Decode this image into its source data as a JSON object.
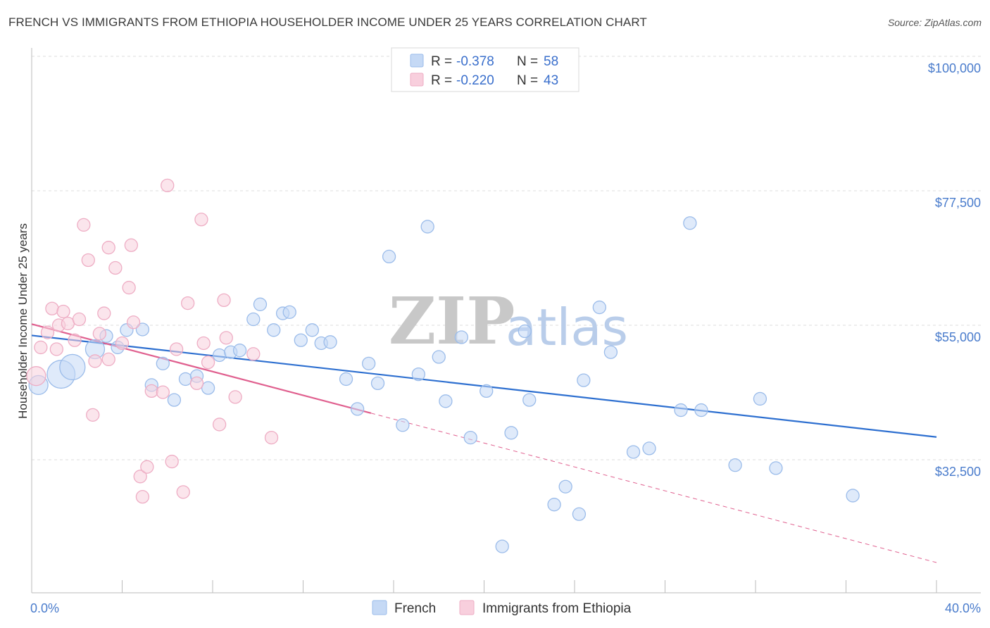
{
  "title": "FRENCH VS IMMIGRANTS FROM ETHIOPIA HOUSEHOLDER INCOME UNDER 25 YEARS CORRELATION CHART",
  "source": "Source: ZipAtlas.com",
  "watermark": {
    "zip": "ZIP",
    "atlas": "atlas"
  },
  "chart_data": {
    "type": "scatter",
    "xlabel": "",
    "ylabel": "Householder Income Under 25 years",
    "xlim": [
      0,
      40
    ],
    "ylim": [
      15000,
      103000
    ],
    "x_tick_labels": [
      {
        "value": 0,
        "label": "0.0%"
      },
      {
        "value": 40,
        "label": "40.0%"
      }
    ],
    "y_tick_labels": [
      {
        "value": 32500,
        "label": "$32,500"
      },
      {
        "value": 55000,
        "label": "$55,000"
      },
      {
        "value": 77500,
        "label": "$77,500"
      },
      {
        "value": 100000,
        "label": "$100,000"
      }
    ],
    "legend": {
      "position": "top-center",
      "rows": [
        {
          "r_label": "R =",
          "r_value": "-0.378",
          "n_label": "N =",
          "n_value": "58"
        },
        {
          "r_label": "R =",
          "r_value": "-0.220",
          "n_label": "N =",
          "n_value": 43
        }
      ]
    },
    "series": [
      {
        "name": "French",
        "color": "#9bbcea",
        "fill": "#c5d9f5",
        "line_color": "#2d6fd0",
        "trend": {
          "x0": 0,
          "y0": 55300,
          "x1": 40,
          "y1": 38300,
          "dashed_from": null
        },
        "points": [
          [
            0.3,
            47000,
            1.5
          ],
          [
            1.3,
            48800,
            2.2
          ],
          [
            1.8,
            50000,
            2.0
          ],
          [
            2.8,
            53000,
            1.5
          ],
          [
            3.3,
            55200,
            1.0
          ],
          [
            3.8,
            53300,
            1.0
          ],
          [
            4.2,
            56200,
            1.0
          ],
          [
            4.9,
            56300,
            1.0
          ],
          [
            5.3,
            47000,
            1.0
          ],
          [
            5.8,
            50600,
            1.0
          ],
          [
            6.3,
            44500,
            1.0
          ],
          [
            6.8,
            48000,
            1.0
          ],
          [
            7.3,
            48500,
            1.0
          ],
          [
            7.8,
            46500,
            1.0
          ],
          [
            8.3,
            52000,
            1.0
          ],
          [
            8.8,
            52500,
            1.0
          ],
          [
            9.2,
            52800,
            1.0
          ],
          [
            9.8,
            58000,
            1.0
          ],
          [
            10.1,
            60500,
            1.0
          ],
          [
            10.7,
            56200,
            1.0
          ],
          [
            11.1,
            59000,
            1.0
          ],
          [
            11.4,
            59200,
            1.0
          ],
          [
            11.9,
            54500,
            1.0
          ],
          [
            12.4,
            56200,
            1.0
          ],
          [
            12.8,
            54000,
            1.0
          ],
          [
            13.2,
            54200,
            1.0
          ],
          [
            13.9,
            48000,
            1.0
          ],
          [
            14.4,
            43000,
            1.0
          ],
          [
            14.9,
            50600,
            1.0
          ],
          [
            15.3,
            47300,
            1.0
          ],
          [
            15.8,
            68500,
            1.0
          ],
          [
            16.4,
            40300,
            1.0
          ],
          [
            17.1,
            48800,
            1.0
          ],
          [
            17.5,
            73500,
            1.0
          ],
          [
            18.0,
            51700,
            1.0
          ],
          [
            18.3,
            44300,
            1.0
          ],
          [
            19.0,
            55000,
            1.0
          ],
          [
            19.4,
            38200,
            1.0
          ],
          [
            20.1,
            46000,
            1.0
          ],
          [
            20.8,
            20000,
            1.0
          ],
          [
            21.2,
            39000,
            1.0
          ],
          [
            21.8,
            56000,
            1.0
          ],
          [
            22.0,
            44500,
            1.0
          ],
          [
            23.1,
            27000,
            1.0
          ],
          [
            24.2,
            25400,
            1.0
          ],
          [
            24.4,
            47800,
            1.0
          ],
          [
            25.1,
            60000,
            1.0
          ],
          [
            25.6,
            52500,
            1.0
          ],
          [
            26.6,
            35800,
            1.0
          ],
          [
            27.3,
            36400,
            1.0
          ],
          [
            28.7,
            42800,
            1.0
          ],
          [
            29.1,
            74100,
            1.0
          ],
          [
            29.6,
            42800,
            1.0
          ],
          [
            31.1,
            33600,
            1.0
          ],
          [
            32.2,
            44700,
            1.0
          ],
          [
            32.9,
            33100,
            1.0
          ],
          [
            36.3,
            28500,
            1.0
          ],
          [
            23.6,
            30000,
            1.0
          ]
        ]
      },
      {
        "name": "Immigrants from Ethiopia",
        "color": "#eeadc4",
        "fill": "#f8cfdd",
        "line_color": "#e0608f",
        "trend": {
          "x0": 0,
          "y0": 57200,
          "x1": 15,
          "y1": 42300,
          "dashed_to_x": 40,
          "dashed_to_y": 17300
        },
        "points": [
          [
            0.2,
            48500,
            1.5
          ],
          [
            0.4,
            53300,
            1.0
          ],
          [
            0.7,
            55800,
            1.0
          ],
          [
            0.9,
            59800,
            1.0
          ],
          [
            1.1,
            53000,
            1.0
          ],
          [
            1.2,
            57000,
            1.0
          ],
          [
            1.4,
            59300,
            1.0
          ],
          [
            1.6,
            57300,
            1.0
          ],
          [
            1.9,
            54500,
            1.0
          ],
          [
            2.1,
            58000,
            1.0
          ],
          [
            2.3,
            73800,
            1.0
          ],
          [
            2.5,
            67900,
            1.0
          ],
          [
            2.8,
            51000,
            1.0
          ],
          [
            3.0,
            55600,
            1.0
          ],
          [
            3.2,
            59000,
            1.0
          ],
          [
            3.4,
            70000,
            1.0
          ],
          [
            3.7,
            66600,
            1.0
          ],
          [
            4.0,
            54000,
            1.0
          ],
          [
            4.3,
            63300,
            1.0
          ],
          [
            4.5,
            57500,
            1.0
          ],
          [
            4.4,
            70400,
            1.0
          ],
          [
            4.8,
            31700,
            1.0
          ],
          [
            4.9,
            28300,
            1.0
          ],
          [
            5.1,
            33300,
            1.0
          ],
          [
            5.3,
            46000,
            1.0
          ],
          [
            5.8,
            45800,
            1.0
          ],
          [
            6.0,
            80400,
            1.0
          ],
          [
            6.2,
            34200,
            1.0
          ],
          [
            6.4,
            53000,
            1.0
          ],
          [
            6.7,
            29100,
            1.0
          ],
          [
            6.9,
            60700,
            1.0
          ],
          [
            7.3,
            47300,
            1.0
          ],
          [
            7.5,
            74700,
            1.0
          ],
          [
            7.8,
            50800,
            1.0
          ],
          [
            8.3,
            40400,
            1.0
          ],
          [
            8.5,
            61200,
            1.0
          ],
          [
            8.6,
            54900,
            1.0
          ],
          [
            9.0,
            45000,
            1.0
          ],
          [
            9.8,
            52200,
            1.0
          ],
          [
            10.6,
            38200,
            1.0
          ],
          [
            2.7,
            42000,
            1.0
          ],
          [
            3.4,
            51300,
            1.0
          ],
          [
            7.6,
            54000,
            1.0
          ]
        ]
      }
    ],
    "grid": true
  }
}
